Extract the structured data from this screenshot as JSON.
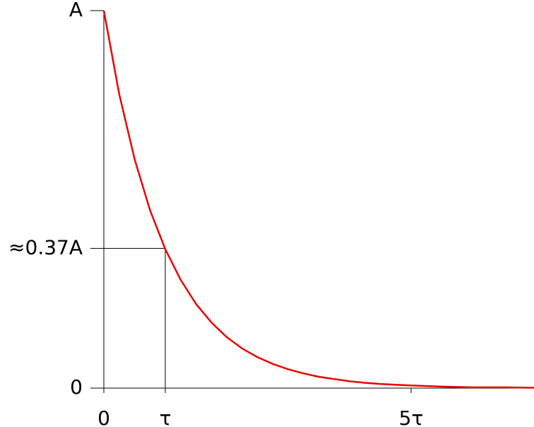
{
  "chart_data": {
    "type": "line",
    "x": [
      0,
      0.25,
      0.5,
      0.75,
      1,
      1.25,
      1.5,
      1.75,
      2,
      2.25,
      2.5,
      2.75,
      3,
      3.25,
      3.5,
      3.75,
      4,
      4.25,
      4.5,
      4.75,
      5,
      5.5,
      6,
      6.5,
      7
    ],
    "series": [
      {
        "color": "#ee0000",
        "values": [
          1,
          0.779,
          0.607,
          0.472,
          0.368,
          0.287,
          0.223,
          0.174,
          0.135,
          0.105,
          0.082,
          0.064,
          0.05,
          0.039,
          0.03,
          0.024,
          0.018,
          0.014,
          0.011,
          0.009,
          0.007,
          0.004,
          0.002,
          0.002,
          0.001
        ]
      }
    ],
    "xlim": [
      0,
      7
    ],
    "ylim": [
      0,
      1
    ],
    "xticks": [
      0,
      {
        "value": 1,
        "label": "τ"
      },
      {
        "value": 5,
        "label": "5τ"
      }
    ],
    "yticks": [
      0,
      {
        "value": 0.37,
        "label": "≈0.37A"
      },
      {
        "value": 1,
        "label": "A"
      }
    ]
  }
}
